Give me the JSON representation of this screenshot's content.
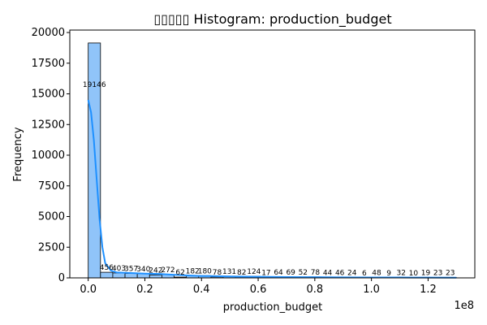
{
  "chart_data": {
    "type": "bar",
    "title": "▯▯▯▯▯ Histogram: production_budget",
    "xlabel": "production_budget",
    "ylabel": "Frequency",
    "x_offset_text": "1e8",
    "xlim": [
      -6500000,
      136500000
    ],
    "ylim": [
      0,
      20200
    ],
    "x_tick_values": [
      0,
      20000000,
      40000000,
      60000000,
      80000000,
      100000000,
      120000000
    ],
    "x_tick_labels": [
      "0.0",
      "0.2",
      "0.4",
      "0.6",
      "0.8",
      "1.0",
      "1.2"
    ],
    "y_tick_values": [
      0,
      2500,
      5000,
      7500,
      10000,
      12500,
      15000,
      17500,
      20000
    ],
    "y_tick_labels": [
      "0",
      "2500",
      "5000",
      "7500",
      "10000",
      "12500",
      "15000",
      "17500",
      "20000"
    ],
    "bin_start": 0,
    "bin_width": 4333333,
    "counts": [
      19146,
      456,
      403,
      357,
      340,
      242,
      272,
      62,
      182,
      180,
      78,
      131,
      82,
      124,
      17,
      64,
      69,
      52,
      78,
      44,
      46,
      24,
      6,
      48,
      9,
      32,
      10,
      19,
      23,
      23
    ],
    "kde": {
      "x": [
        0,
        1000000,
        2000000,
        3000000,
        4000000,
        5000000,
        6000000,
        8000000,
        10000000,
        15000000,
        20000000,
        25000000,
        30000000,
        35000000,
        40000000,
        50000000,
        60000000,
        70000000,
        80000000,
        90000000,
        100000000,
        110000000,
        120000000,
        130000000
      ],
      "y": [
        14500,
        13500,
        11200,
        8000,
        4800,
        2500,
        1200,
        600,
        450,
        400,
        350,
        320,
        260,
        200,
        160,
        120,
        90,
        70,
        55,
        45,
        35,
        30,
        25,
        20
      ]
    },
    "colors": {
      "bar_fill": "#90c4f9",
      "bar_edge": "#000000",
      "kde_line": "#1e90ff"
    }
  }
}
